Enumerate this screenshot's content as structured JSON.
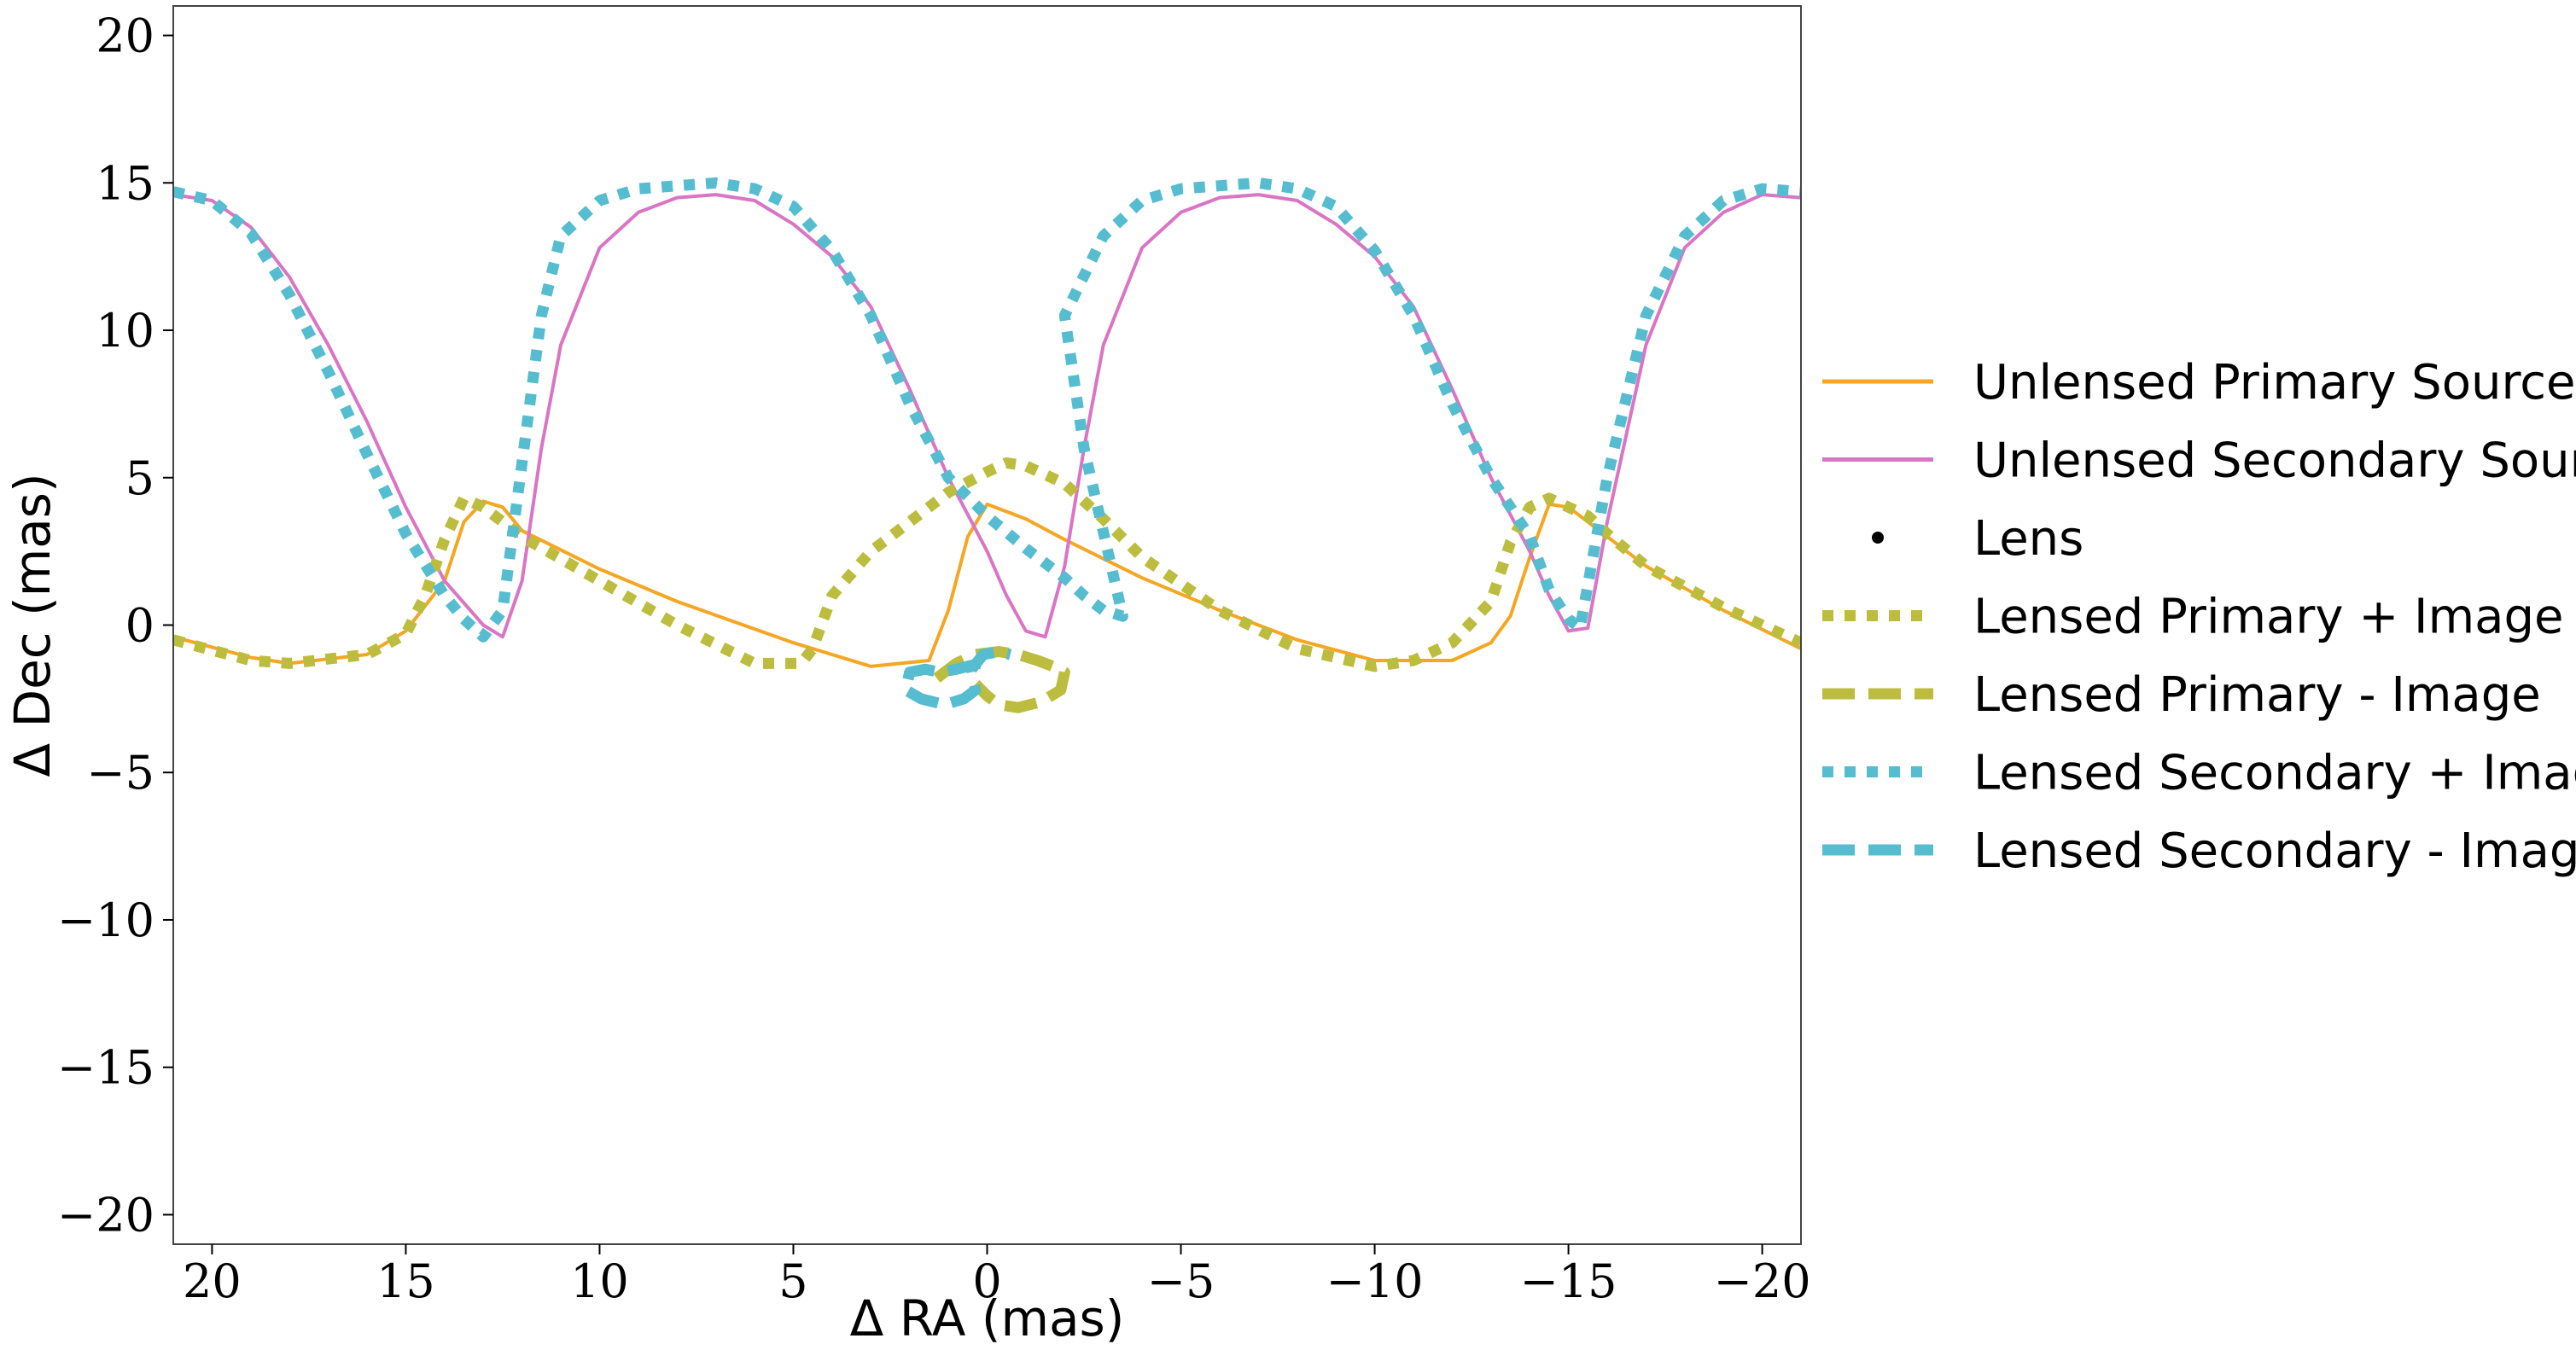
{
  "chart_data": {
    "type": "line",
    "title": "",
    "xlabel": "Δ RA (mas)",
    "ylabel": "Δ Dec (mas)",
    "xlim": [
      21,
      -21
    ],
    "ylim": [
      -21,
      21
    ],
    "xticks": [
      20,
      15,
      10,
      5,
      0,
      -5,
      -10,
      -15,
      -20
    ],
    "xtick_labels": [
      "20",
      "15",
      "10",
      "5",
      "0",
      "−5",
      "−10",
      "−15",
      "−20"
    ],
    "yticks": [
      20,
      15,
      10,
      5,
      0,
      -5,
      -10,
      -15,
      -20
    ],
    "ytick_labels": [
      "20",
      "15",
      "10",
      "5",
      "0",
      "−5",
      "−10",
      "−15",
      "−20"
    ],
    "grid": false,
    "legend_position": "right",
    "series": [
      {
        "name": "Unlensed Primary Source",
        "color": "#f5a623",
        "style": "solid",
        "x": [
          21,
          19,
          18,
          16,
          15,
          14,
          13.5,
          13,
          12.5,
          12,
          10,
          8,
          5,
          3,
          1.5,
          1,
          0.5,
          0,
          -1,
          -2,
          -4,
          -6,
          -8,
          -10,
          -12,
          -13,
          -13.5,
          -14,
          -14.5,
          -15,
          -17,
          -19,
          -21
        ],
        "y": [
          -0.4,
          -1.1,
          -1.3,
          -1.0,
          -0.2,
          1.5,
          3.5,
          4.2,
          4.0,
          3.2,
          1.9,
          0.8,
          -0.6,
          -1.4,
          -1.2,
          0.5,
          3.0,
          4.1,
          3.6,
          2.9,
          1.6,
          0.5,
          -0.5,
          -1.2,
          -1.2,
          -0.6,
          0.3,
          2.3,
          4.1,
          4.0,
          2.0,
          0.5,
          -0.8
        ]
      },
      {
        "name": "Unlensed Secondary Source",
        "color": "#d975c4",
        "style": "solid",
        "x": [
          21,
          20,
          19,
          18,
          17,
          16,
          15,
          14,
          13,
          12.5,
          12,
          11.5,
          11,
          10,
          9,
          8,
          7,
          6,
          5,
          4,
          3,
          2,
          1,
          0,
          -0.5,
          -1,
          -1.5,
          -2,
          -2.5,
          -3,
          -4,
          -5,
          -6,
          -7,
          -8,
          -9,
          -10,
          -11,
          -12,
          -13,
          -14,
          -14.5,
          -15,
          -15.5,
          -16,
          -17,
          -18,
          -19,
          -20,
          -21
        ],
        "y": [
          14.6,
          14.4,
          13.5,
          11.8,
          9.5,
          6.9,
          4.0,
          1.5,
          0.0,
          -0.4,
          1.5,
          6.0,
          9.5,
          12.8,
          14.0,
          14.5,
          14.6,
          14.4,
          13.6,
          12.5,
          10.8,
          8.0,
          5.0,
          2.5,
          1.0,
          -0.2,
          -0.4,
          2.0,
          6.0,
          9.5,
          12.8,
          14.0,
          14.5,
          14.6,
          14.4,
          13.6,
          12.5,
          10.8,
          8.0,
          5.0,
          2.5,
          1.0,
          -0.2,
          -0.1,
          3.5,
          9.5,
          12.8,
          14.0,
          14.6,
          14.5
        ]
      },
      {
        "name": "Lens",
        "color": "#000000",
        "style": "marker",
        "x": [
          0
        ],
        "y": [
          -0.9
        ]
      },
      {
        "name": "Lensed Primary + Image",
        "color": "#bcbd3e",
        "style": "dotted",
        "x": [
          21,
          19,
          18,
          16,
          15,
          14.5,
          14,
          13.5,
          13,
          12,
          10,
          8,
          6,
          4.8,
          4.5,
          4,
          3,
          2,
          1,
          0,
          -0.5,
          -1,
          -2,
          -3,
          -4,
          -6,
          -8,
          -10,
          -11,
          -12,
          -13,
          -13.5,
          -14,
          -14.5,
          -15,
          -15.5,
          -16,
          -17,
          -19,
          -21
        ],
        "y": [
          -0.5,
          -1.2,
          -1.3,
          -1.0,
          -0.3,
          1.0,
          2.9,
          4.3,
          4.0,
          3.0,
          1.5,
          0.0,
          -1.3,
          -1.3,
          -0.8,
          1.0,
          2.5,
          3.5,
          4.5,
          5.2,
          5.5,
          5.4,
          4.8,
          3.6,
          2.3,
          0.5,
          -0.8,
          -1.4,
          -1.2,
          -0.6,
          0.8,
          2.8,
          4.0,
          4.3,
          4.0,
          3.7,
          3.1,
          2.0,
          0.6,
          -0.6
        ]
      },
      {
        "name": "Lensed Primary - Image",
        "color": "#bcbd3e",
        "style": "dashed",
        "x": [
          1.3,
          0.8,
          0.3,
          -0.3,
          -0.8,
          -1.3,
          -1.7,
          -2.0,
          -1.9,
          -1.4,
          -0.8,
          -0.3,
          0,
          0.3
        ],
        "y": [
          -1.8,
          -1.3,
          -1.0,
          -0.9,
          -1.0,
          -1.2,
          -1.4,
          -1.6,
          -2.2,
          -2.6,
          -2.8,
          -2.7,
          -2.4,
          -2.0
        ]
      },
      {
        "name": "Lensed Secondary + Image",
        "color": "#56bccf",
        "style": "dotted",
        "x": [
          21,
          20,
          19,
          18,
          17,
          16,
          15,
          14,
          13.5,
          13,
          12.5,
          12,
          11.5,
          11,
          10,
          9,
          8,
          7,
          6,
          5,
          4,
          3,
          2,
          1,
          0,
          -1,
          -2,
          -2.5,
          -3,
          -3.5,
          -2.5,
          -2,
          -3,
          -4,
          -5,
          -6,
          -7,
          -8,
          -9,
          -10,
          -11,
          -12,
          -13,
          -14,
          -14.5,
          -15,
          -15.3,
          -16,
          -17,
          -18,
          -19,
          -20,
          -21
        ],
        "y": [
          14.7,
          14.4,
          13.3,
          11.2,
          8.6,
          5.8,
          3.1,
          1.0,
          0.2,
          -0.4,
          0.5,
          5.5,
          10.5,
          13.2,
          14.4,
          14.8,
          14.9,
          15.0,
          14.8,
          14.2,
          12.7,
          10.5,
          7.5,
          5.0,
          3.7,
          2.6,
          1.6,
          1.0,
          0.5,
          0.3,
          6.0,
          10.5,
          13.2,
          14.4,
          14.8,
          14.9,
          15.0,
          14.8,
          14.2,
          12.7,
          10.5,
          7.5,
          5.0,
          3.0,
          1.2,
          0.2,
          -0.1,
          5.0,
          10.5,
          13.2,
          14.4,
          14.8,
          14.7
        ]
      },
      {
        "name": "Lensed Secondary - Image",
        "color": "#56bccf",
        "style": "dashed",
        "x": [
          0.2,
          0.8,
          1.2,
          1.6,
          2.0,
          2.1,
          1.7,
          1.1,
          0.6,
          0.3,
          0.4,
          0.1,
          -0.3,
          -0.6
        ],
        "y": [
          -1.3,
          -1.5,
          -1.6,
          -1.5,
          -1.6,
          -2.2,
          -2.5,
          -2.7,
          -2.5,
          -2.2,
          -1.5,
          -1.0,
          -0.9,
          -1.0
        ]
      }
    ]
  }
}
